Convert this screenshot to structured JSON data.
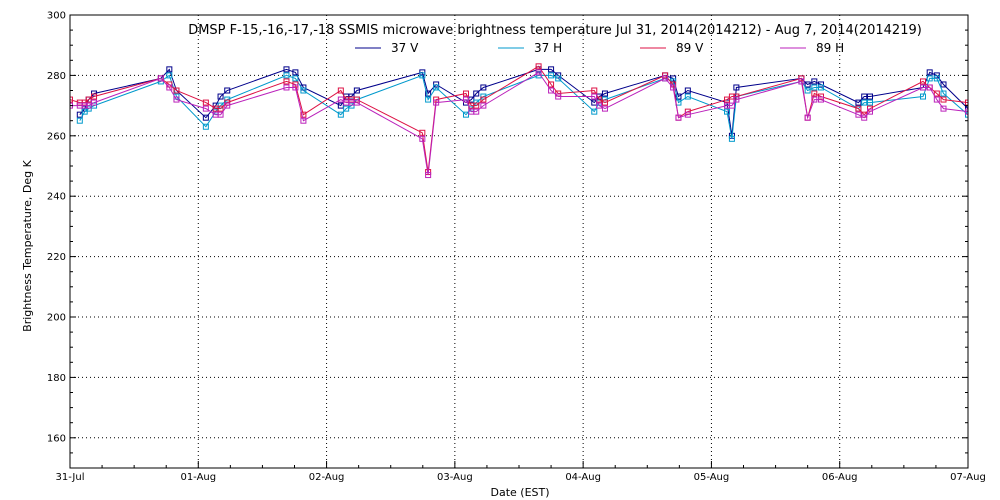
{
  "chart_data": {
    "type": "line",
    "title": "DMSP F-15,-16,-17,-18 SSMIS microwave brightness temperature Jul 31, 2014(2014212) - Aug  7, 2014(2014219)",
    "xlabel": "Date (EST)",
    "ylabel": "Brightness Temperature, Deg K",
    "xlim": [
      "2014-07-31T00:00",
      "2014-08-07T00:00"
    ],
    "ylim": [
      150,
      300
    ],
    "x_ticks": [
      "31-Jul",
      "01-Aug",
      "02-Aug",
      "03-Aug",
      "04-Aug",
      "05-Aug",
      "06-Aug",
      "07-Aug"
    ],
    "y_ticks": [
      160,
      180,
      200,
      220,
      240,
      260,
      280,
      300
    ],
    "grid": true,
    "legend": "top-center",
    "series": [
      {
        "name": "37 V",
        "color": "#00008b",
        "points": [
          [
            "2014-07-31T01:50",
            267
          ],
          [
            "2014-07-31T02:45",
            269
          ],
          [
            "2014-07-31T03:30",
            272
          ],
          [
            "2014-07-31T04:30",
            274
          ],
          [
            "2014-07-31T17:00",
            279
          ],
          [
            "2014-07-31T18:35",
            282
          ],
          [
            "2014-07-31T19:55",
            275
          ],
          [
            "2014-08-01T01:25",
            266
          ],
          [
            "2014-08-01T03:15",
            270
          ],
          [
            "2014-08-01T04:10",
            273
          ],
          [
            "2014-08-01T05:25",
            275
          ],
          [
            "2014-08-01T16:30",
            282
          ],
          [
            "2014-08-01T18:10",
            281
          ],
          [
            "2014-08-01T19:40",
            276
          ],
          [
            "2014-08-02T02:40",
            270
          ],
          [
            "2014-08-02T03:40",
            273
          ],
          [
            "2014-08-02T04:40",
            273
          ],
          [
            "2014-08-02T05:40",
            275
          ],
          [
            "2014-08-02T17:55",
            281
          ],
          [
            "2014-08-02T19:00",
            274
          ],
          [
            "2014-08-02T20:30",
            277
          ],
          [
            "2014-08-03T02:05",
            271
          ],
          [
            "2014-08-03T03:05",
            272
          ],
          [
            "2014-08-03T04:00",
            274
          ],
          [
            "2014-08-03T05:20",
            276
          ],
          [
            "2014-08-03T15:40",
            282
          ],
          [
            "2014-08-03T18:00",
            282
          ],
          [
            "2014-08-03T19:20",
            280
          ],
          [
            "2014-08-04T02:05",
            271
          ],
          [
            "2014-08-04T03:00",
            273
          ],
          [
            "2014-08-04T04:05",
            274
          ],
          [
            "2014-08-04T15:20",
            280
          ],
          [
            "2014-08-04T16:50",
            279
          ],
          [
            "2014-08-04T17:50",
            273
          ],
          [
            "2014-08-04T19:35",
            275
          ],
          [
            "2014-08-05T02:55",
            271
          ],
          [
            "2014-08-05T03:50",
            260
          ],
          [
            "2014-08-05T04:40",
            276
          ],
          [
            "2014-08-05T16:50",
            279
          ],
          [
            "2014-08-05T18:00",
            277
          ],
          [
            "2014-08-05T19:15",
            278
          ],
          [
            "2014-08-05T20:30",
            277
          ],
          [
            "2014-08-06T03:30",
            271
          ],
          [
            "2014-08-06T04:35",
            273
          ],
          [
            "2014-08-06T05:40",
            273
          ],
          [
            "2014-08-06T15:35",
            276
          ],
          [
            "2014-08-06T16:50",
            281
          ],
          [
            "2014-08-06T18:10",
            280
          ],
          [
            "2014-08-06T19:25",
            277
          ],
          [
            "2014-08-07T00:00",
            269
          ]
        ]
      },
      {
        "name": "37 H",
        "color": "#0099cc",
        "points": [
          [
            "2014-07-31T01:50",
            265
          ],
          [
            "2014-07-31T02:45",
            268
          ],
          [
            "2014-07-31T03:30",
            269
          ],
          [
            "2014-07-31T04:30",
            270
          ],
          [
            "2014-07-31T17:00",
            278
          ],
          [
            "2014-07-31T18:35",
            280
          ],
          [
            "2014-07-31T19:55",
            273
          ],
          [
            "2014-08-01T01:25",
            263
          ],
          [
            "2014-08-01T03:15",
            268
          ],
          [
            "2014-08-01T04:10",
            270
          ],
          [
            "2014-08-01T05:25",
            272
          ],
          [
            "2014-08-01T16:30",
            280
          ],
          [
            "2014-08-01T18:10",
            279
          ],
          [
            "2014-08-01T19:40",
            275
          ],
          [
            "2014-08-02T02:40",
            267
          ],
          [
            "2014-08-02T03:40",
            269
          ],
          [
            "2014-08-02T04:40",
            270
          ],
          [
            "2014-08-02T05:40",
            272
          ],
          [
            "2014-08-02T17:55",
            280
          ],
          [
            "2014-08-02T19:00",
            272
          ],
          [
            "2014-08-02T20:30",
            276
          ],
          [
            "2014-08-03T02:05",
            267
          ],
          [
            "2014-08-03T03:05",
            269
          ],
          [
            "2014-08-03T04:00",
            271
          ],
          [
            "2014-08-03T05:20",
            273
          ],
          [
            "2014-08-03T15:40",
            280
          ],
          [
            "2014-08-03T18:00",
            280
          ],
          [
            "2014-08-03T19:20",
            279
          ],
          [
            "2014-08-04T02:05",
            268
          ],
          [
            "2014-08-04T03:00",
            271
          ],
          [
            "2014-08-04T04:05",
            272
          ],
          [
            "2014-08-04T15:20",
            279
          ],
          [
            "2014-08-04T16:50",
            278
          ],
          [
            "2014-08-04T17:50",
            271
          ],
          [
            "2014-08-04T19:35",
            273
          ],
          [
            "2014-08-05T02:55",
            268
          ],
          [
            "2014-08-05T03:50",
            259
          ],
          [
            "2014-08-05T04:40",
            273
          ],
          [
            "2014-08-05T16:50",
            278
          ],
          [
            "2014-08-05T18:00",
            275
          ],
          [
            "2014-08-05T19:15",
            276
          ],
          [
            "2014-08-05T20:30",
            276
          ],
          [
            "2014-08-06T03:30",
            269
          ],
          [
            "2014-08-06T04:35",
            271
          ],
          [
            "2014-08-06T05:40",
            271
          ],
          [
            "2014-08-06T15:35",
            273
          ],
          [
            "2014-08-06T16:50",
            279
          ],
          [
            "2014-08-06T18:10",
            279
          ],
          [
            "2014-08-06T19:25",
            274
          ],
          [
            "2014-08-07T00:00",
            267
          ]
        ]
      },
      {
        "name": "89 V",
        "color": "#dd1144",
        "points": [
          [
            "2014-07-31T00:00",
            272
          ],
          [
            "2014-07-31T01:50",
            271
          ],
          [
            "2014-07-31T02:45",
            271
          ],
          [
            "2014-07-31T03:30",
            272
          ],
          [
            "2014-07-31T04:30",
            273
          ],
          [
            "2014-07-31T17:00",
            279
          ],
          [
            "2014-07-31T18:35",
            277
          ],
          [
            "2014-07-31T19:55",
            275
          ],
          [
            "2014-08-01T01:25",
            271
          ],
          [
            "2014-08-01T03:15",
            269
          ],
          [
            "2014-08-01T04:10",
            269
          ],
          [
            "2014-08-01T05:25",
            271
          ],
          [
            "2014-08-01T16:30",
            278
          ],
          [
            "2014-08-01T18:10",
            277
          ],
          [
            "2014-08-01T19:40",
            267
          ],
          [
            "2014-08-02T02:40",
            275
          ],
          [
            "2014-08-02T03:40",
            272
          ],
          [
            "2014-08-02T04:40",
            272
          ],
          [
            "2014-08-02T05:40",
            272
          ],
          [
            "2014-08-02T17:55",
            261
          ],
          [
            "2014-08-02T19:00",
            248
          ],
          [
            "2014-08-02T20:30",
            272
          ],
          [
            "2014-08-03T02:05",
            274
          ],
          [
            "2014-08-03T03:05",
            270
          ],
          [
            "2014-08-03T04:00",
            270
          ],
          [
            "2014-08-03T05:20",
            272
          ],
          [
            "2014-08-03T15:40",
            283
          ],
          [
            "2014-08-03T18:00",
            277
          ],
          [
            "2014-08-03T19:20",
            274
          ],
          [
            "2014-08-04T02:05",
            275
          ],
          [
            "2014-08-04T03:00",
            272
          ],
          [
            "2014-08-04T04:05",
            271
          ],
          [
            "2014-08-04T15:20",
            280
          ],
          [
            "2014-08-04T16:50",
            277
          ],
          [
            "2014-08-04T17:50",
            266
          ],
          [
            "2014-08-04T19:35",
            268
          ],
          [
            "2014-08-05T02:55",
            272
          ],
          [
            "2014-08-05T03:50",
            273
          ],
          [
            "2014-08-05T04:40",
            273
          ],
          [
            "2014-08-05T16:50",
            279
          ],
          [
            "2014-08-05T18:00",
            266
          ],
          [
            "2014-08-05T19:15",
            274
          ],
          [
            "2014-08-05T20:30",
            273
          ],
          [
            "2014-08-06T03:30",
            269
          ],
          [
            "2014-08-06T04:35",
            267
          ],
          [
            "2014-08-06T05:40",
            269
          ],
          [
            "2014-08-06T15:35",
            278
          ],
          [
            "2014-08-06T16:50",
            276
          ],
          [
            "2014-08-06T18:10",
            274
          ],
          [
            "2014-08-06T19:25",
            272
          ],
          [
            "2014-08-07T00:00",
            271
          ]
        ]
      },
      {
        "name": "89 H",
        "color": "#bb22bb",
        "points": [
          [
            "2014-07-31T00:00",
            270
          ],
          [
            "2014-07-31T01:50",
            270
          ],
          [
            "2014-07-31T02:45",
            270
          ],
          [
            "2014-07-31T03:30",
            270
          ],
          [
            "2014-07-31T04:30",
            271
          ],
          [
            "2014-07-31T17:00",
            279
          ],
          [
            "2014-07-31T18:35",
            276
          ],
          [
            "2014-07-31T19:55",
            272
          ],
          [
            "2014-08-01T01:25",
            269
          ],
          [
            "2014-08-01T03:15",
            267
          ],
          [
            "2014-08-01T04:10",
            267
          ],
          [
            "2014-08-01T05:25",
            270
          ],
          [
            "2014-08-01T16:30",
            276
          ],
          [
            "2014-08-01T18:10",
            276
          ],
          [
            "2014-08-01T19:40",
            265
          ],
          [
            "2014-08-02T02:40",
            272
          ],
          [
            "2014-08-02T03:40",
            271
          ],
          [
            "2014-08-02T04:40",
            271
          ],
          [
            "2014-08-02T05:40",
            271
          ],
          [
            "2014-08-02T17:55",
            259
          ],
          [
            "2014-08-02T19:00",
            247
          ],
          [
            "2014-08-02T20:30",
            271
          ],
          [
            "2014-08-03T02:05",
            272
          ],
          [
            "2014-08-03T03:05",
            268
          ],
          [
            "2014-08-03T04:00",
            268
          ],
          [
            "2014-08-03T05:20",
            270
          ],
          [
            "2014-08-03T15:40",
            281
          ],
          [
            "2014-08-03T18:00",
            275
          ],
          [
            "2014-08-03T19:20",
            273
          ],
          [
            "2014-08-04T02:05",
            273
          ],
          [
            "2014-08-04T03:00",
            270
          ],
          [
            "2014-08-04T04:05",
            269
          ],
          [
            "2014-08-04T15:20",
            279
          ],
          [
            "2014-08-04T16:50",
            276
          ],
          [
            "2014-08-04T17:50",
            266
          ],
          [
            "2014-08-04T19:35",
            267
          ],
          [
            "2014-08-05T02:55",
            270
          ],
          [
            "2014-08-05T03:50",
            270
          ],
          [
            "2014-08-05T04:40",
            272
          ],
          [
            "2014-08-05T16:50",
            278
          ],
          [
            "2014-08-05T18:00",
            266
          ],
          [
            "2014-08-05T19:15",
            272
          ],
          [
            "2014-08-05T20:30",
            272
          ],
          [
            "2014-08-06T03:30",
            267
          ],
          [
            "2014-08-06T04:35",
            266
          ],
          [
            "2014-08-06T05:40",
            268
          ],
          [
            "2014-08-06T15:35",
            276
          ],
          [
            "2014-08-06T16:50",
            276
          ],
          [
            "2014-08-06T18:10",
            272
          ],
          [
            "2014-08-06T19:25",
            269
          ],
          [
            "2014-08-07T00:00",
            268
          ]
        ]
      }
    ]
  }
}
